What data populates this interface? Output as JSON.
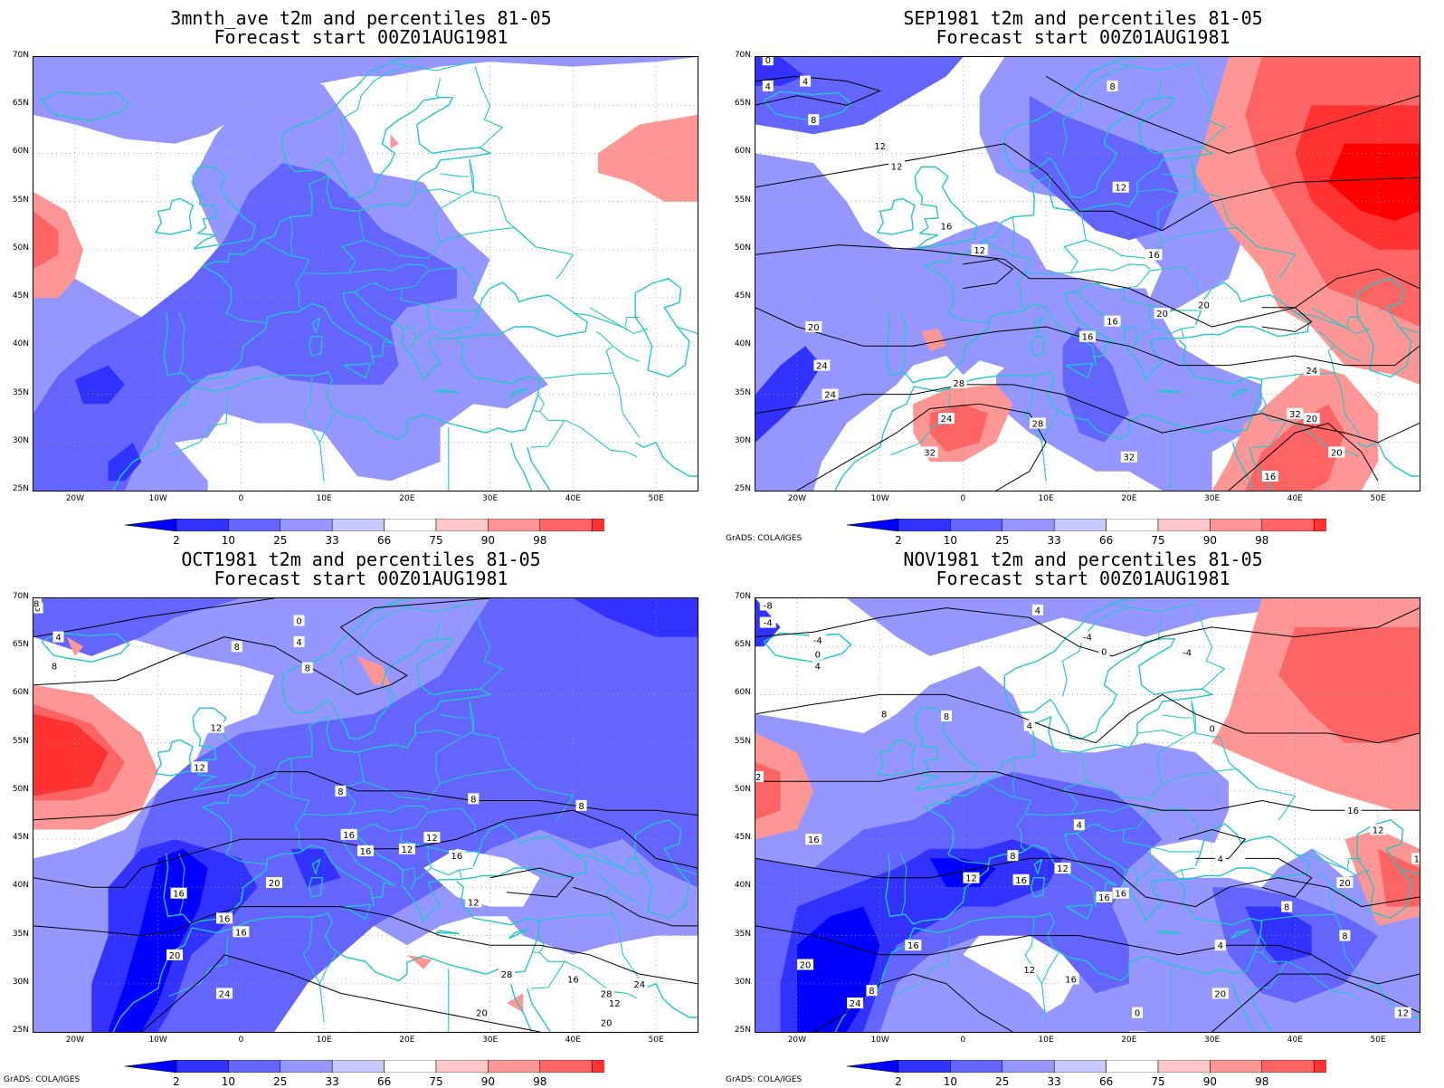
{
  "panels": [
    {
      "title_line1": "3mnth_ave t2m and percentiles 81-05",
      "title_line2": "Forecast start 00Z01AUG1981",
      "credit": "",
      "contour_labels": []
    },
    {
      "title_line1": "SEP1981 t2m and percentiles 81-05",
      "title_line2": "Forecast start 00Z01AUG1981",
      "credit": "GrADS: COLA/IGES",
      "contour_labels": [
        "0",
        "4",
        "4",
        "8",
        "12",
        "12",
        "16",
        "12",
        "8",
        "12",
        "16",
        "20",
        "20",
        "16",
        "16",
        "20",
        "24",
        "24",
        "28",
        "24",
        "32",
        "28",
        "32",
        "24",
        "32",
        "20",
        "20",
        "16"
      ]
    },
    {
      "title_line1": "OCT1981 t2m and percentiles 81-05",
      "title_line2": "Forecast start 00Z01AUG1981",
      "credit": "GrADS: COLA/IGES",
      "contour_labels": [
        "0",
        "4",
        "8",
        "8",
        "4",
        "0",
        "8",
        "12",
        "12",
        "8",
        "8",
        "8",
        "12",
        "16",
        "12",
        "16",
        "16",
        "12",
        "20",
        "16",
        "16",
        "16",
        "20",
        "24",
        "20",
        "28",
        "28",
        "12",
        "16",
        "20",
        "24",
        "28"
      ]
    },
    {
      "title_line1": "NOV1981 t2m and percentiles 81-05",
      "title_line2": "Forecast start 00Z01AUG1981",
      "credit": "GrADS: COLA/IGES",
      "contour_labels": [
        "-8",
        "-4",
        "-4",
        "0",
        "4",
        "4",
        "-4",
        "0",
        "-4",
        "4",
        "8",
        "8",
        "0",
        "12",
        "16",
        "8",
        "12",
        "16",
        "16",
        "4",
        "12",
        "12",
        "16",
        "20",
        "16",
        "4",
        "8",
        "16",
        "12",
        "12",
        "20",
        "16",
        "8",
        "20",
        "24",
        "0",
        "4",
        "8",
        "12",
        "20"
      ]
    }
  ],
  "lat_labels": [
    "70N",
    "65N",
    "60N",
    "55N",
    "50N",
    "45N",
    "40N",
    "35N",
    "30N",
    "25N"
  ],
  "lon_labels": [
    "20W",
    "10W",
    "0",
    "10E",
    "20E",
    "30E",
    "40E",
    "50E"
  ],
  "colorbar": {
    "labels": [
      "2",
      "10",
      "25",
      "33",
      "66",
      "75",
      "90",
      "98"
    ],
    "colors": [
      "#0000ff",
      "#3232ff",
      "#6464ff",
      "#9696ff",
      "#c8c8ff",
      "#ffffff",
      "#ffc8c8",
      "#ff9696",
      "#ff6464",
      "#ff3232",
      "#ff0000"
    ]
  },
  "colors": {
    "coast": "#20c8c8",
    "contour": "#000000",
    "grid": "#999999"
  }
}
